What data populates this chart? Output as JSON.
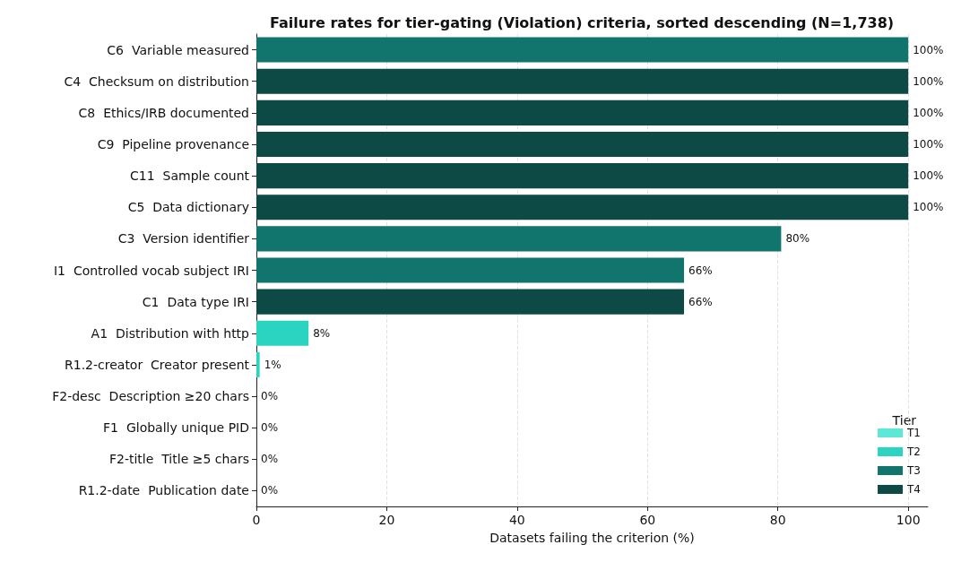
{
  "chart_data": {
    "type": "bar",
    "orientation": "horizontal",
    "stacked": true,
    "title": "Failure rates for tier-gating (Violation) criteria, sorted descending (N=1,738)",
    "xlabel": "Datasets failing the criterion (%)",
    "legend_title": "Tier",
    "legend": "bottom right",
    "grid": "x",
    "categories": [
      "C6  Variable measured",
      "C4  Checksum on distribution",
      "C8  Ethics/IRB documented",
      "C9  Pipeline provenance",
      "C11  Sample count",
      "C5  Data dictionary",
      "C3  Version identifier",
      "I1  Controlled vocab subject IRI",
      "C1  Data type IRI",
      "A1  Distribution with http",
      "R1.2-creator  Creator present",
      "F2-desc  Description ≥20 chars",
      "F1  Globally unique PID",
      "F2-title  Title ≥5 chars",
      "R1.2-date  Publication date"
    ],
    "series": [
      {
        "name": "T1",
        "color": "#5ce8d6",
        "values": [
          null,
          null,
          null,
          null,
          null,
          null,
          null,
          null,
          null,
          null,
          null,
          0,
          0,
          0,
          0
        ]
      },
      {
        "name": "T2",
        "color": "#2ad4c0",
        "values": [
          null,
          null,
          null,
          null,
          null,
          null,
          null,
          null,
          null,
          8,
          0.5,
          null,
          null,
          null,
          null
        ]
      },
      {
        "name": "T3",
        "color": "#12756d",
        "values": [
          100,
          null,
          null,
          null,
          null,
          null,
          80.5,
          65.6,
          null,
          null,
          null,
          null,
          null,
          null,
          null
        ]
      },
      {
        "name": "T4",
        "color": "#0e4a45",
        "values": [
          null,
          100,
          100,
          100,
          100,
          100,
          null,
          null,
          65.6,
          null,
          null,
          null,
          null,
          null,
          null
        ]
      }
    ],
    "value_labels": [
      "100%",
      "100%",
      "100%",
      "100%",
      "100%",
      "100%",
      "80%",
      "66%",
      "66%",
      "8%",
      "1%",
      "0%",
      "0%",
      "0%",
      "0%"
    ],
    "xlim": [
      0,
      103
    ],
    "xticks": [
      0,
      20,
      40,
      60,
      80,
      100
    ]
  }
}
